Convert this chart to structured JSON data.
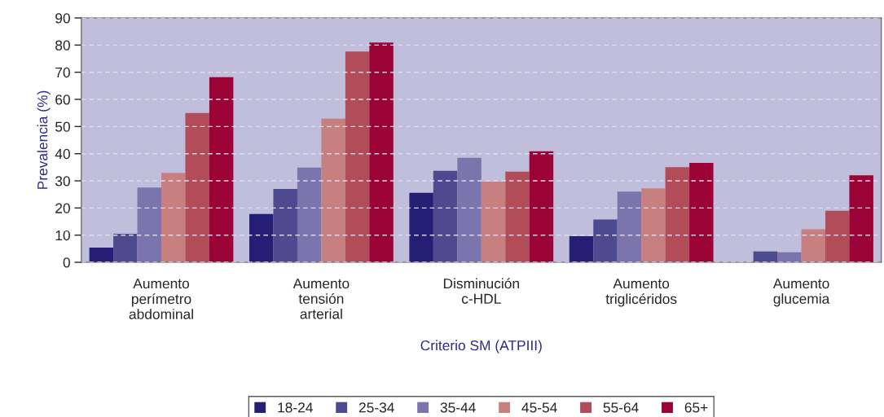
{
  "chart_data": {
    "type": "bar",
    "xlabel": "Criterio SM (ATPIII)",
    "ylabel": "Prevalencia (%)",
    "categories": [
      "Aumento\nperímetro\nabdominal",
      "Aumento\ntensión\narterial",
      "Disminución\nc-HDL",
      "Aumento\ntriglicéridos",
      "Aumento\nglucemia"
    ],
    "series": [
      {
        "name": "18-24",
        "color": "#241f75",
        "values": [
          5.4,
          17.8,
          25.6,
          9.6,
          null
        ]
      },
      {
        "name": "25-34",
        "color": "#4e4a90",
        "values": [
          10.5,
          27,
          33.7,
          15.8,
          4
        ]
      },
      {
        "name": "35-44",
        "color": "#7b74ad",
        "values": [
          27.5,
          34.9,
          38.5,
          26,
          3.7
        ]
      },
      {
        "name": "45-54",
        "color": "#c87f80",
        "values": [
          32.9,
          52.9,
          29.7,
          27.2,
          12.2
        ]
      },
      {
        "name": "55-64",
        "color": "#b24c59",
        "values": [
          55,
          77.6,
          33.4,
          35,
          19
        ]
      },
      {
        "name": "65+",
        "color": "#9b0336",
        "values": [
          68.2,
          80.9,
          40.9,
          36.6,
          32
        ]
      }
    ],
    "ylim": [
      0,
      90
    ],
    "yticks": [
      0,
      10,
      20,
      30,
      40,
      50,
      60,
      70,
      80,
      90
    ],
    "grid": "y",
    "legend": "bottom"
  }
}
